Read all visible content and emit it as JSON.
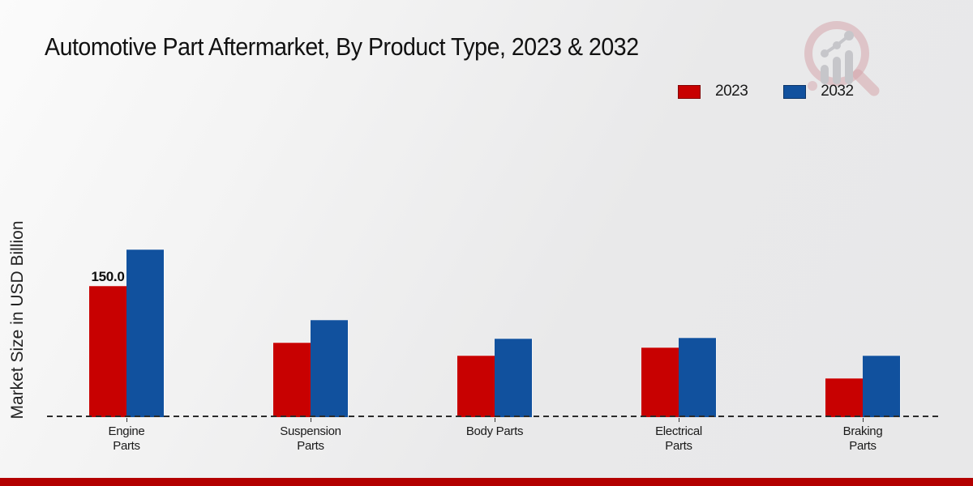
{
  "title": "Automotive Part Aftermarket, By Product Type, 2023 & 2032",
  "y_axis_label": "Market Size in USD Billion",
  "legend": {
    "position": "top-right",
    "items": [
      {
        "label": "2023",
        "color": "#c80101"
      },
      {
        "label": "2032",
        "color": "#11519e"
      }
    ]
  },
  "watermark_icon": "magnifier-bar-chart-logo",
  "footer": {
    "accent_color": "#b30000"
  },
  "chart_data": {
    "type": "bar",
    "title": "Automotive Part Aftermarket, By Product Type, 2023 & 2032",
    "xlabel": "",
    "ylabel": "Market Size in USD Billion",
    "categories": [
      "Engine Parts",
      "Suspension Parts",
      "Body Parts",
      "Electrical Parts",
      "Braking Parts"
    ],
    "category_lines": [
      [
        "Engine",
        "Parts"
      ],
      [
        "Suspension",
        "Parts"
      ],
      [
        "Body Parts"
      ],
      [
        "Electrical",
        "Parts"
      ],
      [
        "Braking",
        "Parts"
      ]
    ],
    "series": [
      {
        "name": "2023",
        "color": "#c80101",
        "values": [
          150.0,
          85,
          70,
          80,
          44
        ]
      },
      {
        "name": "2032",
        "color": "#11519e",
        "values": [
          192,
          111,
          90,
          91,
          70
        ]
      }
    ],
    "bar_labels": [
      {
        "series_index": 0,
        "category_index": 0,
        "text": "150.0"
      }
    ],
    "ylim": [
      0,
      200
    ],
    "grid": false,
    "legend_position": "top-right",
    "baseline_style": "dashed"
  }
}
